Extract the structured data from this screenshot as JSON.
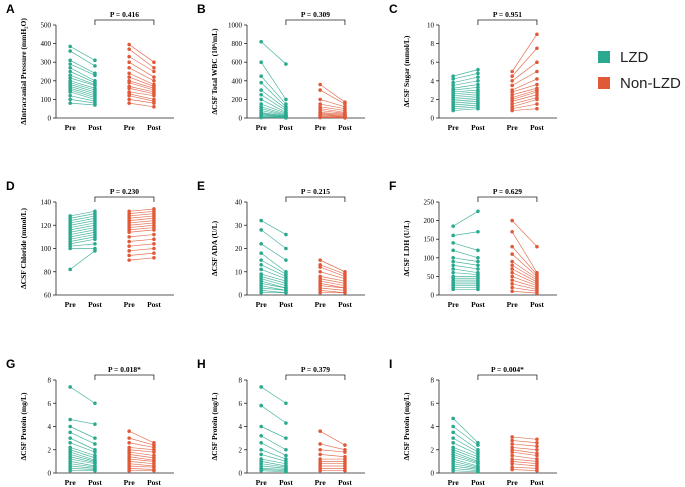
{
  "colors": {
    "lzd": "#2aa98f",
    "nonlzd": "#e05a3a"
  },
  "legend": [
    {
      "label": "LZD",
      "color": "#2aa98f"
    },
    {
      "label": "Non-LZD",
      "color": "#e05a3a"
    }
  ],
  "chart_data": [
    {
      "panel": "A",
      "type": "paired-scatter",
      "ylabel": "ΔIntracranial Pressure (mmH₂O)",
      "ylim": [
        0,
        500
      ],
      "yticks": [
        0,
        100,
        200,
        300,
        400,
        500
      ],
      "pvalue": "P = 0.416",
      "categories": [
        "Pre",
        "Post",
        "Pre",
        "Post"
      ],
      "series": [
        {
          "name": "LZD",
          "pre": [
            385,
            360,
            310,
            290,
            270,
            250,
            230,
            215,
            200,
            190,
            180,
            170,
            160,
            150,
            140,
            120,
            100,
            80
          ],
          "post": [
            310,
            280,
            240,
            230,
            200,
            190,
            180,
            175,
            160,
            150,
            140,
            130,
            120,
            110,
            100,
            90,
            80,
            70
          ]
        },
        {
          "name": "Non-LZD",
          "pre": [
            395,
            370,
            330,
            300,
            270,
            240,
            220,
            200,
            190,
            170,
            160,
            140,
            130,
            120,
            100,
            80
          ],
          "post": [
            300,
            270,
            250,
            220,
            200,
            180,
            170,
            160,
            150,
            140,
            130,
            120,
            100,
            90,
            80,
            60
          ]
        }
      ]
    },
    {
      "panel": "B",
      "type": "paired-scatter",
      "ylabel": "ΔCSF Total WBC (10⁶/mL)",
      "ylim": [
        0,
        1000
      ],
      "yticks": [
        0,
        200,
        400,
        600,
        800,
        1000
      ],
      "pvalue": "P = 0.309",
      "categories": [
        "Pre",
        "Post",
        "Pre",
        "Post"
      ],
      "series": [
        {
          "name": "LZD",
          "pre": [
            820,
            600,
            450,
            380,
            300,
            250,
            200,
            150,
            120,
            100,
            80,
            60,
            50,
            40,
            30,
            20,
            10,
            5
          ],
          "post": [
            580,
            200,
            150,
            120,
            100,
            80,
            60,
            50,
            40,
            30,
            25,
            20,
            15,
            10,
            8,
            5,
            3,
            2
          ]
        },
        {
          "name": "Non-LZD",
          "pre": [
            360,
            300,
            200,
            150,
            120,
            100,
            80,
            60,
            50,
            40,
            30,
            20,
            10,
            5
          ],
          "post": [
            170,
            150,
            120,
            100,
            80,
            60,
            50,
            40,
            30,
            20,
            15,
            10,
            5,
            2
          ]
        }
      ]
    },
    {
      "panel": "C",
      "type": "paired-scatter",
      "ylabel": "ΔCSF Sugar (mmol/L)",
      "ylim": [
        0,
        10
      ],
      "yticks": [
        0,
        2,
        4,
        6,
        8,
        10
      ],
      "pvalue": "P = 0.951",
      "categories": [
        "Pre",
        "Post",
        "Pre",
        "Post"
      ],
      "series": [
        {
          "name": "LZD",
          "pre": [
            4.5,
            4.2,
            3.8,
            3.5,
            3.2,
            3.0,
            2.8,
            2.6,
            2.4,
            2.2,
            2.0,
            1.8,
            1.6,
            1.4,
            1.2,
            1.0,
            0.8
          ],
          "post": [
            5.2,
            4.8,
            4.4,
            4.0,
            3.6,
            3.3,
            3.0,
            2.8,
            2.6,
            2.4,
            2.2,
            2.0,
            1.8,
            1.6,
            1.4,
            1.2,
            1.0
          ]
        },
        {
          "name": "Non-LZD",
          "pre": [
            5.0,
            4.5,
            4.0,
            3.5,
            3.0,
            2.8,
            2.5,
            2.2,
            2.0,
            1.8,
            1.5,
            1.2,
            1.0,
            0.8
          ],
          "post": [
            9.0,
            7.5,
            6.0,
            5.0,
            4.2,
            3.6,
            3.2,
            3.0,
            2.8,
            2.5,
            2.2,
            2.0,
            1.5,
            1.0
          ]
        }
      ]
    },
    {
      "panel": "D",
      "type": "paired-scatter",
      "ylabel": "ΔCSF Chloride (mmol/L)",
      "ylim": [
        60,
        140
      ],
      "yticks": [
        60,
        80,
        100,
        120,
        140
      ],
      "pvalue": "P = 0.230",
      "categories": [
        "Pre",
        "Post",
        "Pre",
        "Post"
      ],
      "series": [
        {
          "name": "LZD",
          "pre": [
            128,
            126,
            124,
            122,
            120,
            118,
            116,
            114,
            112,
            110,
            108,
            106,
            104,
            102,
            100,
            82
          ],
          "post": [
            132,
            130,
            128,
            126,
            124,
            122,
            120,
            118,
            116,
            114,
            112,
            110,
            108,
            104,
            100,
            98
          ]
        },
        {
          "name": "Non-LZD",
          "pre": [
            132,
            130,
            128,
            126,
            124,
            122,
            120,
            118,
            116,
            114,
            110,
            106,
            102,
            98,
            94,
            90
          ],
          "post": [
            134,
            132,
            130,
            128,
            126,
            124,
            122,
            120,
            118,
            116,
            112,
            108,
            104,
            100,
            96,
            92
          ]
        }
      ]
    },
    {
      "panel": "E",
      "type": "paired-scatter",
      "ylabel": "ΔCSF ADA (U/L)",
      "ylim": [
        0,
        40
      ],
      "yticks": [
        0,
        10,
        20,
        30,
        40
      ],
      "pvalue": "P = 0.215",
      "categories": [
        "Pre",
        "Post",
        "Pre",
        "Post"
      ],
      "series": [
        {
          "name": "LZD",
          "pre": [
            32,
            28,
            22,
            18,
            15,
            13,
            11,
            9,
            8,
            7,
            6,
            5,
            4,
            3,
            2,
            1
          ],
          "post": [
            26,
            20,
            15,
            10,
            9,
            8,
            7,
            6,
            5,
            4,
            3,
            3,
            2,
            2,
            1,
            1
          ]
        },
        {
          "name": "Non-LZD",
          "pre": [
            15,
            13,
            12,
            10,
            8,
            7,
            6,
            5,
            4,
            3,
            2,
            1
          ],
          "post": [
            10,
            9,
            8,
            7,
            6,
            5,
            4,
            3,
            3,
            2,
            1,
            1
          ]
        }
      ]
    },
    {
      "panel": "F",
      "type": "paired-scatter",
      "ylabel": "ΔCSF LDH (U/L)",
      "ylim": [
        0,
        250
      ],
      "yticks": [
        0,
        50,
        100,
        150,
        200,
        250
      ],
      "pvalue": "P = 0.629",
      "categories": [
        "Pre",
        "Post",
        "Pre",
        "Post"
      ],
      "series": [
        {
          "name": "LZD",
          "pre": [
            185,
            160,
            140,
            120,
            100,
            90,
            80,
            70,
            60,
            50,
            45,
            40,
            35,
            30,
            25,
            20,
            15
          ],
          "post": [
            225,
            170,
            120,
            100,
            90,
            80,
            70,
            60,
            55,
            50,
            45,
            40,
            35,
            30,
            25,
            20,
            15
          ]
        },
        {
          "name": "Non-LZD",
          "pre": [
            200,
            170,
            130,
            110,
            90,
            80,
            70,
            60,
            50,
            40,
            30,
            20,
            10
          ],
          "post": [
            130,
            60,
            55,
            50,
            45,
            40,
            35,
            30,
            25,
            20,
            15,
            10,
            5
          ]
        }
      ]
    },
    {
      "panel": "G",
      "type": "paired-scatter",
      "ylabel": "ΔCSF Protein (mg/L)",
      "ylim": [
        0,
        8
      ],
      "yticks": [
        0,
        2,
        4,
        6,
        8
      ],
      "pvalue": "P = 0.018*",
      "categories": [
        "Pre",
        "Post",
        "Pre",
        "Post"
      ],
      "series": [
        {
          "name": "LZD",
          "pre": [
            7.4,
            4.6,
            4.0,
            3.5,
            3.0,
            2.6,
            2.2,
            2.0,
            1.8,
            1.6,
            1.4,
            1.2,
            1.0,
            0.8,
            0.6,
            0.4,
            0.2
          ],
          "post": [
            6.0,
            4.2,
            3.0,
            2.5,
            2.0,
            1.8,
            1.5,
            1.3,
            1.1,
            1.0,
            0.9,
            0.8,
            0.6,
            0.5,
            0.4,
            0.3,
            0.2
          ]
        },
        {
          "name": "Non-LZD",
          "pre": [
            3.6,
            3.0,
            2.6,
            2.2,
            2.0,
            1.8,
            1.6,
            1.4,
            1.2,
            1.0,
            0.8,
            0.6,
            0.4,
            0.2
          ],
          "post": [
            2.6,
            2.4,
            2.2,
            2.0,
            1.8,
            1.5,
            1.3,
            1.1,
            1.0,
            0.8,
            0.6,
            0.5,
            0.3,
            0.2
          ]
        }
      ]
    },
    {
      "panel": "H",
      "type": "paired-scatter",
      "ylabel": "ΔCSF Protein (mg/L)",
      "ylim": [
        0,
        8
      ],
      "yticks": [
        0,
        2,
        4,
        6,
        8
      ],
      "pvalue": "P = 0.379",
      "categories": [
        "Pre",
        "Post",
        "Pre",
        "Post"
      ],
      "series": [
        {
          "name": "LZD",
          "pre": [
            7.4,
            5.8,
            4.0,
            3.2,
            2.6,
            2.0,
            1.6,
            1.2,
            1.0,
            0.8,
            0.6,
            0.4,
            0.3,
            0.2
          ],
          "post": [
            6.0,
            4.3,
            3.0,
            2.0,
            1.5,
            1.2,
            1.0,
            0.8,
            0.6,
            0.5,
            0.4,
            0.3,
            0.2,
            0.1
          ]
        },
        {
          "name": "Non-LZD",
          "pre": [
            3.6,
            2.5,
            2.0,
            1.6,
            1.2,
            1.0,
            0.8,
            0.6,
            0.4,
            0.2
          ],
          "post": [
            2.4,
            2.0,
            1.8,
            1.4,
            1.2,
            1.0,
            0.8,
            0.6,
            0.4,
            0.2
          ]
        }
      ]
    },
    {
      "panel": "I",
      "type": "paired-scatter",
      "ylabel": "ΔCSF Protein (mg/L)",
      "ylim": [
        0,
        8
      ],
      "yticks": [
        0,
        2,
        4,
        6,
        8
      ],
      "pvalue": "P = 0.004*",
      "categories": [
        "Pre",
        "Post",
        "Pre",
        "Post"
      ],
      "series": [
        {
          "name": "LZD",
          "pre": [
            4.7,
            4.0,
            3.5,
            3.0,
            2.6,
            2.2,
            2.0,
            1.8,
            1.6,
            1.4,
            1.2,
            1.0,
            0.8,
            0.6,
            0.4,
            0.2
          ],
          "post": [
            2.6,
            2.4,
            2.0,
            1.8,
            1.6,
            1.4,
            1.2,
            1.0,
            0.9,
            0.8,
            0.6,
            0.5,
            0.4,
            0.3,
            0.2,
            0.1
          ]
        },
        {
          "name": "Non-LZD",
          "pre": [
            3.1,
            2.8,
            2.5,
            2.2,
            2.0,
            1.8,
            1.5,
            1.2,
            1.0,
            0.8,
            0.5,
            0.3
          ],
          "post": [
            2.9,
            2.6,
            2.3,
            2.0,
            1.7,
            1.5,
            1.2,
            1.0,
            0.8,
            0.6,
            0.4,
            0.2
          ]
        }
      ]
    }
  ]
}
